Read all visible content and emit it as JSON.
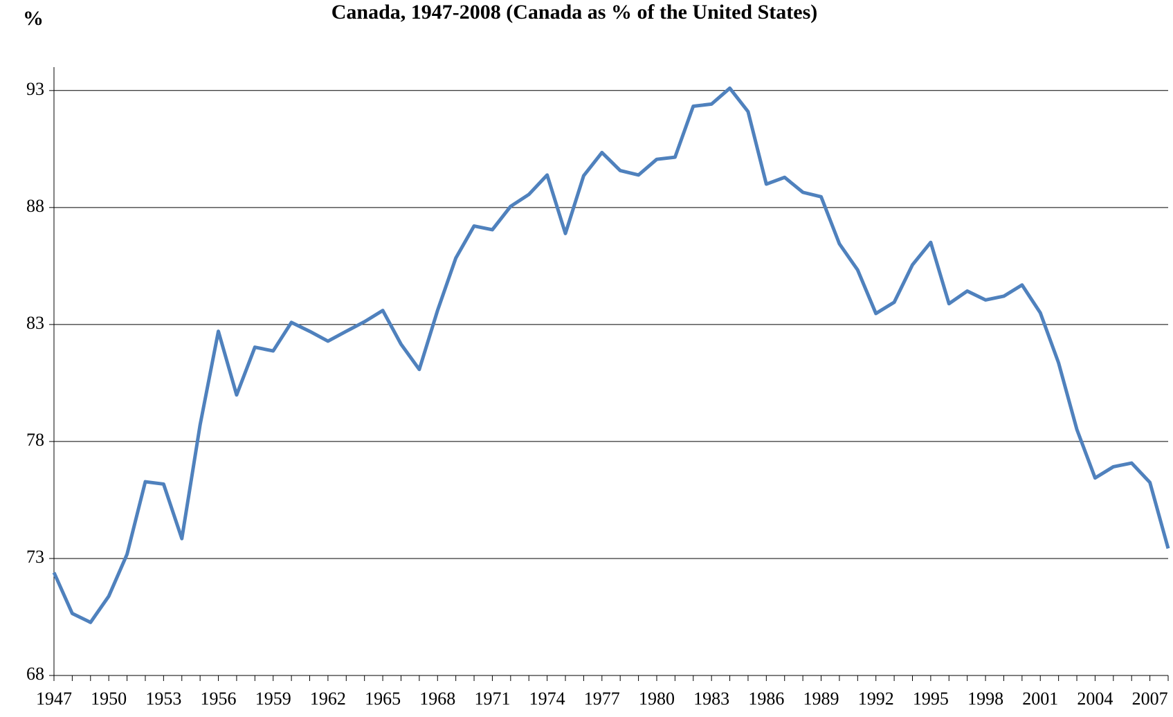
{
  "chart_data": {
    "type": "line",
    "title": "Canada, 1947-2008 (Canada as % of the United States)",
    "y_label": "%",
    "categories": [
      "1947",
      null,
      null,
      "1950",
      null,
      null,
      "1953",
      null,
      null,
      "1956",
      null,
      null,
      "1959",
      null,
      null,
      "1962",
      null,
      null,
      "1965",
      null,
      null,
      "1968",
      null,
      null,
      "1971",
      null,
      null,
      "1974",
      null,
      null,
      "1977",
      null,
      null,
      "1980",
      null,
      null,
      "1983",
      null,
      null,
      "1986",
      null,
      null,
      "1989",
      null,
      null,
      "1992",
      null,
      null,
      "1995",
      null,
      null,
      "1998",
      null,
      null,
      "2001",
      null,
      null,
      "2004",
      null,
      null,
      "2007",
      null
    ],
    "series": [
      {
        "name": "Canada",
        "color": "#4f81bd",
        "values": [
          72.4,
          70.65,
          70.27,
          71.39,
          73.18,
          76.28,
          76.18,
          73.85,
          78.71,
          82.71,
          79.99,
          82.03,
          81.87,
          83.09,
          82.71,
          82.29,
          82.71,
          83.12,
          83.6,
          82.16,
          81.08,
          83.6,
          85.84,
          87.21,
          87.05,
          88.05,
          88.56,
          89.39,
          86.89,
          89.36,
          90.35,
          89.58,
          89.39,
          90.06,
          90.15,
          92.33,
          92.42,
          93.1,
          92.1,
          89.0,
          89.29,
          88.65,
          88.46,
          86.45,
          85.33,
          83.47,
          83.95,
          85.55,
          86.51,
          83.89,
          84.43,
          84.05,
          84.21,
          84.69,
          83.5,
          81.36,
          78.52,
          76.44,
          76.92,
          77.08,
          76.25,
          73.43
        ]
      }
    ],
    "ylim": [
      68,
      94
    ],
    "yticks": [
      68,
      73,
      78,
      83,
      88,
      93
    ],
    "grid": true
  }
}
